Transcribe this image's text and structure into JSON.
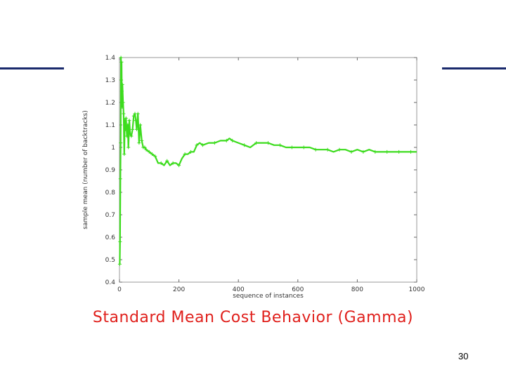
{
  "slide": {
    "caption": "Standard Mean Cost Behavior (Gamma)",
    "page_number": "30",
    "rule_color": "#1a2a6c",
    "caption_color": "#e0201c"
  },
  "chart_data": {
    "type": "line",
    "title": "",
    "xlabel": "sequence of instances",
    "ylabel": "sample mean (number of backtracks)",
    "xlim": [
      0,
      1000
    ],
    "ylim": [
      0.4,
      1.4
    ],
    "xticks": [
      0,
      200,
      400,
      600,
      800,
      1000
    ],
    "yticks": [
      0.4,
      0.5,
      0.6,
      0.7,
      0.8,
      0.9,
      1,
      1.1,
      1.2,
      1.3,
      1.4
    ],
    "grid": false,
    "line_color": "#3ddc1e",
    "series": [
      {
        "x": [
          1,
          2,
          3,
          4,
          5,
          6,
          7,
          8,
          9,
          10,
          12,
          14,
          16,
          18,
          20,
          22,
          25,
          28,
          30,
          33,
          36,
          40,
          44,
          48,
          52,
          55,
          58,
          62,
          66,
          70,
          75,
          80,
          85,
          90,
          100,
          110,
          120,
          130,
          140,
          150,
          160,
          170,
          180,
          190,
          200,
          210,
          220,
          230,
          240,
          250,
          260,
          270,
          280,
          300,
          320,
          340,
          360,
          370,
          380,
          400,
          420,
          440,
          460,
          480,
          500,
          520,
          540,
          560,
          580,
          600,
          620,
          640,
          660,
          680,
          700,
          720,
          740,
          760,
          780,
          800,
          820,
          840,
          860,
          880,
          900,
          920,
          940,
          960,
          980,
          1000
        ],
        "y": [
          0.48,
          0.58,
          0.86,
          1.02,
          1.4,
          1.3,
          1.38,
          1.25,
          1.18,
          1.28,
          1.2,
          1.15,
          0.97,
          1.12,
          1.08,
          1.13,
          1.05,
          1.1,
          1.0,
          1.12,
          1.06,
          1.05,
          1.08,
          1.14,
          1.15,
          1.12,
          1.08,
          1.15,
          1.02,
          1.1,
          1.03,
          1.0,
          1.0,
          0.99,
          0.98,
          0.97,
          0.96,
          0.93,
          0.93,
          0.92,
          0.94,
          0.92,
          0.93,
          0.93,
          0.92,
          0.95,
          0.97,
          0.97,
          0.98,
          0.98,
          1.01,
          1.02,
          1.01,
          1.02,
          1.02,
          1.03,
          1.03,
          1.04,
          1.03,
          1.02,
          1.01,
          1.0,
          1.02,
          1.02,
          1.02,
          1.01,
          1.01,
          1.0,
          1.0,
          1.0,
          1.0,
          1.0,
          0.99,
          0.99,
          0.99,
          0.98,
          0.99,
          0.99,
          0.98,
          0.99,
          0.98,
          0.99,
          0.98,
          0.98,
          0.98,
          0.98,
          0.98,
          0.98,
          0.98,
          0.98
        ]
      }
    ]
  }
}
